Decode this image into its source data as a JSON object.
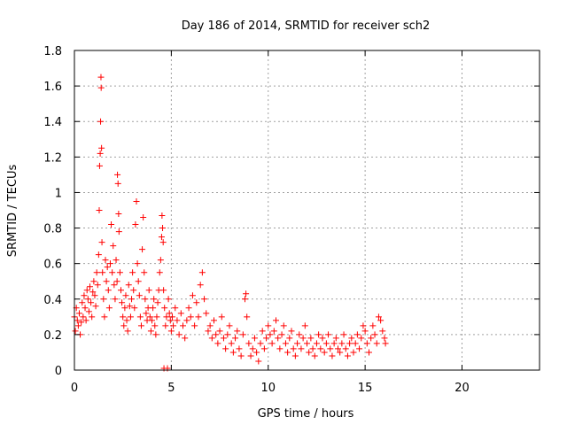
{
  "chart_data": {
    "type": "scatter",
    "title": "Day 186 of 2014, SRMTID for receiver sch2",
    "xlabel": "GPS time / hours",
    "ylabel": "SRMTID / TECUs",
    "xlim": [
      0,
      24
    ],
    "ylim": [
      0,
      1.8
    ],
    "x_ticks": [
      0,
      5,
      10,
      15,
      20
    ],
    "x_tick_labels": [
      "0",
      "5",
      "10",
      "15",
      "20"
    ],
    "y_ticks": [
      0,
      0.2,
      0.4,
      0.6,
      0.8,
      1.0,
      1.2,
      1.4,
      1.6,
      1.8
    ],
    "y_tick_labels": [
      "0",
      "0.2",
      "0.4",
      "0.6",
      "0.8",
      "1",
      "1.2",
      "1.4",
      "1.6",
      "1.8"
    ],
    "grid": true,
    "marker": "+",
    "color": "#ff0000",
    "series": [
      {
        "name": "sch2",
        "points": [
          [
            0.0,
            0.3
          ],
          [
            0.05,
            0.22
          ],
          [
            0.1,
            0.35
          ],
          [
            0.15,
            0.28
          ],
          [
            0.2,
            0.25
          ],
          [
            0.25,
            0.32
          ],
          [
            0.3,
            0.2
          ],
          [
            0.35,
            0.27
          ],
          [
            0.4,
            0.38
          ],
          [
            0.45,
            0.3
          ],
          [
            0.5,
            0.42
          ],
          [
            0.55,
            0.35
          ],
          [
            0.6,
            0.28
          ],
          [
            0.65,
            0.45
          ],
          [
            0.7,
            0.4
          ],
          [
            0.75,
            0.33
          ],
          [
            0.8,
            0.47
          ],
          [
            0.85,
            0.38
          ],
          [
            0.9,
            0.3
          ],
          [
            0.95,
            0.44
          ],
          [
            1.0,
            0.5
          ],
          [
            1.05,
            0.42
          ],
          [
            1.1,
            0.36
          ],
          [
            1.15,
            0.55
          ],
          [
            1.2,
            0.48
          ],
          [
            1.25,
            0.65
          ],
          [
            1.28,
            0.9
          ],
          [
            1.3,
            1.15
          ],
          [
            1.33,
            1.22
          ],
          [
            1.35,
            1.4
          ],
          [
            1.37,
            1.65
          ],
          [
            1.38,
            1.59
          ],
          [
            1.4,
            1.25
          ],
          [
            1.42,
            0.72
          ],
          [
            1.45,
            0.55
          ],
          [
            1.5,
            0.4
          ],
          [
            1.55,
            0.3
          ],
          [
            1.6,
            0.62
          ],
          [
            1.65,
            0.5
          ],
          [
            1.7,
            0.58
          ],
          [
            1.75,
            0.45
          ],
          [
            1.8,
            0.35
          ],
          [
            1.85,
            0.6
          ],
          [
            1.9,
            0.82
          ],
          [
            1.95,
            0.55
          ],
          [
            2.0,
            0.7
          ],
          [
            2.05,
            0.48
          ],
          [
            2.1,
            0.4
          ],
          [
            2.15,
            0.62
          ],
          [
            2.2,
            0.5
          ],
          [
            2.22,
            1.1
          ],
          [
            2.25,
            1.05
          ],
          [
            2.28,
            0.88
          ],
          [
            2.3,
            0.78
          ],
          [
            2.35,
            0.55
          ],
          [
            2.4,
            0.45
          ],
          [
            2.45,
            0.38
          ],
          [
            2.5,
            0.3
          ],
          [
            2.55,
            0.25
          ],
          [
            2.6,
            0.35
          ],
          [
            2.65,
            0.42
          ],
          [
            2.7,
            0.28
          ],
          [
            2.75,
            0.22
          ],
          [
            2.8,
            0.48
          ],
          [
            2.85,
            0.36
          ],
          [
            2.9,
            0.3
          ],
          [
            2.95,
            0.4
          ],
          [
            3.0,
            0.55
          ],
          [
            3.05,
            0.45
          ],
          [
            3.1,
            0.35
          ],
          [
            3.15,
            0.82
          ],
          [
            3.2,
            0.95
          ],
          [
            3.25,
            0.6
          ],
          [
            3.3,
            0.5
          ],
          [
            3.35,
            0.42
          ],
          [
            3.4,
            0.3
          ],
          [
            3.45,
            0.25
          ],
          [
            3.5,
            0.68
          ],
          [
            3.55,
            0.86
          ],
          [
            3.6,
            0.55
          ],
          [
            3.65,
            0.4
          ],
          [
            3.7,
            0.32
          ],
          [
            3.75,
            0.28
          ],
          [
            3.8,
            0.35
          ],
          [
            3.85,
            0.45
          ],
          [
            3.9,
            0.3
          ],
          [
            3.95,
            0.22
          ],
          [
            4.0,
            0.28
          ],
          [
            4.05,
            0.35
          ],
          [
            4.1,
            0.4
          ],
          [
            4.15,
            0.25
          ],
          [
            4.2,
            0.2
          ],
          [
            4.25,
            0.3
          ],
          [
            4.3,
            0.38
          ],
          [
            4.35,
            0.45
          ],
          [
            4.4,
            0.55
          ],
          [
            4.45,
            0.62
          ],
          [
            4.5,
            0.75
          ],
          [
            4.52,
            0.87
          ],
          [
            4.55,
            0.8
          ],
          [
            4.58,
            0.72
          ],
          [
            4.6,
            0.45
          ],
          [
            4.62,
            0.01
          ],
          [
            4.65,
            0.35
          ],
          [
            4.7,
            0.25
          ],
          [
            4.75,
            0.3
          ],
          [
            4.8,
            0.01
          ],
          [
            4.85,
            0.4
          ],
          [
            4.9,
            0.32
          ],
          [
            4.95,
            0.28
          ],
          [
            5.0,
            0.22
          ],
          [
            5.05,
            0.3
          ],
          [
            5.1,
            0.25
          ],
          [
            5.2,
            0.35
          ],
          [
            5.3,
            0.28
          ],
          [
            5.4,
            0.2
          ],
          [
            5.5,
            0.32
          ],
          [
            5.6,
            0.25
          ],
          [
            5.7,
            0.18
          ],
          [
            5.8,
            0.28
          ],
          [
            5.9,
            0.35
          ],
          [
            6.0,
            0.3
          ],
          [
            6.1,
            0.42
          ],
          [
            6.2,
            0.25
          ],
          [
            6.3,
            0.38
          ],
          [
            6.4,
            0.3
          ],
          [
            6.5,
            0.48
          ],
          [
            6.6,
            0.55
          ],
          [
            6.7,
            0.4
          ],
          [
            6.8,
            0.32
          ],
          [
            6.9,
            0.22
          ],
          [
            7.0,
            0.25
          ],
          [
            7.1,
            0.18
          ],
          [
            7.2,
            0.28
          ],
          [
            7.3,
            0.2
          ],
          [
            7.4,
            0.15
          ],
          [
            7.5,
            0.22
          ],
          [
            7.6,
            0.3
          ],
          [
            7.7,
            0.18
          ],
          [
            7.8,
            0.12
          ],
          [
            7.9,
            0.2
          ],
          [
            8.0,
            0.25
          ],
          [
            8.1,
            0.15
          ],
          [
            8.2,
            0.1
          ],
          [
            8.3,
            0.18
          ],
          [
            8.4,
            0.22
          ],
          [
            8.5,
            0.12
          ],
          [
            8.6,
            0.08
          ],
          [
            8.7,
            0.2
          ],
          [
            8.8,
            0.4
          ],
          [
            8.85,
            0.43
          ],
          [
            8.9,
            0.3
          ],
          [
            9.0,
            0.15
          ],
          [
            9.1,
            0.08
          ],
          [
            9.2,
            0.12
          ],
          [
            9.3,
            0.18
          ],
          [
            9.4,
            0.1
          ],
          [
            9.5,
            0.05
          ],
          [
            9.6,
            0.15
          ],
          [
            9.7,
            0.22
          ],
          [
            9.8,
            0.12
          ],
          [
            9.9,
            0.18
          ],
          [
            10.0,
            0.25
          ],
          [
            10.1,
            0.2
          ],
          [
            10.2,
            0.15
          ],
          [
            10.3,
            0.22
          ],
          [
            10.4,
            0.28
          ],
          [
            10.5,
            0.18
          ],
          [
            10.6,
            0.12
          ],
          [
            10.7,
            0.2
          ],
          [
            10.8,
            0.25
          ],
          [
            10.9,
            0.15
          ],
          [
            11.0,
            0.1
          ],
          [
            11.1,
            0.18
          ],
          [
            11.2,
            0.22
          ],
          [
            11.3,
            0.12
          ],
          [
            11.4,
            0.08
          ],
          [
            11.5,
            0.15
          ],
          [
            11.6,
            0.2
          ],
          [
            11.7,
            0.12
          ],
          [
            11.8,
            0.18
          ],
          [
            11.9,
            0.25
          ],
          [
            12.0,
            0.15
          ],
          [
            12.1,
            0.1
          ],
          [
            12.2,
            0.18
          ],
          [
            12.3,
            0.12
          ],
          [
            12.4,
            0.08
          ],
          [
            12.5,
            0.15
          ],
          [
            12.6,
            0.2
          ],
          [
            12.7,
            0.12
          ],
          [
            12.8,
            0.18
          ],
          [
            12.9,
            0.1
          ],
          [
            13.0,
            0.15
          ],
          [
            13.1,
            0.2
          ],
          [
            13.2,
            0.12
          ],
          [
            13.3,
            0.08
          ],
          [
            13.4,
            0.15
          ],
          [
            13.5,
            0.18
          ],
          [
            13.6,
            0.12
          ],
          [
            13.7,
            0.1
          ],
          [
            13.8,
            0.15
          ],
          [
            13.9,
            0.2
          ],
          [
            14.0,
            0.12
          ],
          [
            14.1,
            0.08
          ],
          [
            14.2,
            0.15
          ],
          [
            14.3,
            0.18
          ],
          [
            14.4,
            0.1
          ],
          [
            14.5,
            0.15
          ],
          [
            14.6,
            0.2
          ],
          [
            14.7,
            0.12
          ],
          [
            14.8,
            0.18
          ],
          [
            14.9,
            0.25
          ],
          [
            15.0,
            0.22
          ],
          [
            15.1,
            0.15
          ],
          [
            15.2,
            0.1
          ],
          [
            15.3,
            0.18
          ],
          [
            15.4,
            0.25
          ],
          [
            15.5,
            0.2
          ],
          [
            15.6,
            0.15
          ],
          [
            15.7,
            0.3
          ],
          [
            15.8,
            0.28
          ],
          [
            15.9,
            0.22
          ],
          [
            16.0,
            0.18
          ],
          [
            16.05,
            0.15
          ]
        ]
      }
    ]
  }
}
